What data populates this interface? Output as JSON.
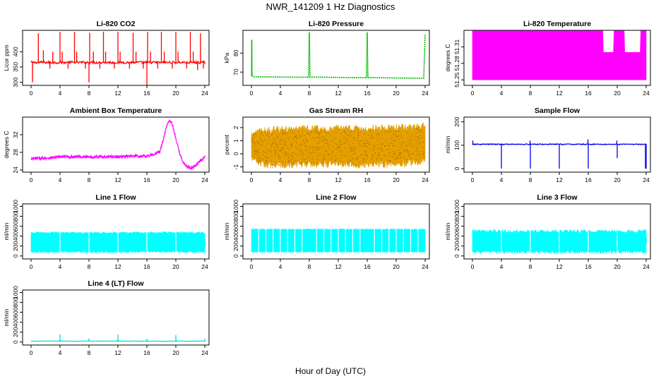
{
  "figure": {
    "title": "NWR_141209  1 Hz Diagnostics",
    "xlabel": "Hour of Day (UTC)"
  },
  "chart_data": [
    {
      "id": "co2",
      "type": "line",
      "title": "Li-820 CO2",
      "ylabel": "Licor ppm",
      "color": "#ff0000",
      "xlim": [
        0,
        24
      ],
      "ylim": [
        290,
        470
      ],
      "xticks": [
        0,
        4,
        8,
        12,
        16,
        20,
        24
      ],
      "yticks": [
        300,
        350,
        400
      ],
      "series": [
        {
          "baseline": 365,
          "noise": 4,
          "spikes": [
            [
              0.2,
              300
            ],
            [
              1.0,
              460
            ],
            [
              1.7,
              405
            ],
            [
              2.6,
              345
            ],
            [
              3.0,
              400
            ],
            [
              4.0,
              465
            ],
            [
              4.3,
              400
            ],
            [
              5.1,
              345
            ],
            [
              6.0,
              465
            ],
            [
              6.3,
              400
            ],
            [
              7.5,
              345
            ],
            [
              8.0,
              300
            ],
            [
              8.1,
              462
            ],
            [
              8.6,
              400
            ],
            [
              9.5,
              345
            ],
            [
              10.0,
              465
            ],
            [
              10.3,
              400
            ],
            [
              11.5,
              345
            ],
            [
              12.0,
              465
            ],
            [
              12.3,
              400
            ],
            [
              13.6,
              345
            ],
            [
              14.1,
              462
            ],
            [
              14.5,
              400
            ],
            [
              15.5,
              345
            ],
            [
              16.0,
              290
            ],
            [
              16.1,
              465
            ],
            [
              16.5,
              400
            ],
            [
              17.5,
              345
            ],
            [
              18.0,
              465
            ],
            [
              18.4,
              400
            ],
            [
              19.5,
              345
            ],
            [
              20.0,
              465
            ],
            [
              20.3,
              400
            ],
            [
              21.5,
              345
            ],
            [
              22.0,
              465
            ],
            [
              22.4,
              400
            ],
            [
              23.0,
              340
            ],
            [
              23.4,
              460
            ],
            [
              23.8,
              345
            ],
            [
              24.0,
              360
            ]
          ]
        }
      ]
    },
    {
      "id": "pressure",
      "type": "line",
      "title": "Li-820 Pressure",
      "ylabel": "kPa",
      "color": "#00bb00",
      "xlim": [
        0,
        24
      ],
      "ylim": [
        63,
        92
      ],
      "xticks": [
        0,
        4,
        8,
        12,
        16,
        20,
        24
      ],
      "yticks": [
        70,
        80
      ],
      "series": [
        {
          "x": [
            0,
            0.05,
            0.1,
            0.3,
            2,
            4,
            6,
            7.9,
            8.0,
            8.1,
            10,
            12,
            14,
            15.9,
            16.0,
            16.1,
            18,
            20,
            22,
            23.8,
            24.0
          ],
          "y": [
            68,
            87,
            68,
            67.5,
            67.5,
            67.4,
            67.3,
            67.3,
            91,
            67.4,
            67.3,
            67.2,
            67.1,
            67.0,
            91,
            67.1,
            67.0,
            66.9,
            66.8,
            66.7,
            90
          ]
        }
      ]
    },
    {
      "id": "licor_temp",
      "type": "area",
      "title": "Li-820 Temperature",
      "ylabel": "degrees C",
      "color": "#ff00ff",
      "xlim": [
        0,
        24
      ],
      "ylim": [
        51.24,
        51.34
      ],
      "xticks": [
        0,
        4,
        8,
        12,
        16,
        20,
        24
      ],
      "yticks": [
        51.25,
        51.28,
        51.31
      ],
      "series": [
        {
          "x": [
            0,
            18,
            18.01,
            19.5,
            19.51,
            21,
            21.01,
            23.2,
            23.21,
            24
          ],
          "low": [
            51.25,
            51.25,
            51.25,
            51.25,
            51.25,
            51.25,
            51.25,
            51.25,
            51.25,
            51.25
          ],
          "high": [
            51.34,
            51.34,
            51.3,
            51.3,
            51.34,
            51.34,
            51.3,
            51.3,
            51.34,
            51.34
          ]
        }
      ]
    },
    {
      "id": "box_temp",
      "type": "line",
      "title": "Ambient Box Temperature",
      "ylabel": "degrees C",
      "color": "#ff00ff",
      "xlim": [
        0,
        24
      ],
      "ylim": [
        23.5,
        36
      ],
      "xticks": [
        0,
        4,
        8,
        12,
        16,
        20,
        24
      ],
      "yticks": [
        24,
        28,
        32
      ],
      "series": [
        {
          "x": [
            0,
            0.5,
            1,
            2,
            3,
            4,
            6,
            8,
            10,
            12,
            14,
            16,
            17,
            17.8,
            18.3,
            18.8,
            19.1,
            19.5,
            20,
            20.5,
            21,
            21.5,
            22,
            22.4,
            23,
            23.5,
            24
          ],
          "y": [
            26.4,
            26.6,
            26.6,
            26.7,
            26.8,
            27.0,
            27.0,
            27.0,
            27.0,
            27.0,
            27.1,
            27.2,
            27.5,
            28.2,
            31.0,
            34.5,
            35.4,
            34.5,
            31.0,
            28.0,
            25.8,
            24.8,
            24.4,
            24.6,
            25.4,
            26.2,
            27.0
          ],
          "noise": 0.35
        }
      ]
    },
    {
      "id": "gas_rh",
      "type": "area",
      "title": "Gas Stream RH",
      "ylabel": "percent",
      "color": "#e3a000",
      "xlim": [
        0,
        24
      ],
      "ylim": [
        -1.4,
        2.8
      ],
      "xticks": [
        0,
        4,
        8,
        12,
        16,
        20,
        24
      ],
      "yticks": [
        -1,
        0,
        1,
        2
      ],
      "series": [
        {
          "x": [
            0,
            2,
            4,
            6,
            8,
            10,
            12,
            14,
            16,
            18,
            20,
            22,
            24
          ],
          "low": [
            -0.5,
            -0.8,
            -0.9,
            -0.8,
            -0.8,
            -0.8,
            -0.8,
            -0.9,
            -0.8,
            -0.8,
            -0.8,
            -0.7,
            -0.6
          ],
          "high": [
            1.5,
            1.8,
            1.9,
            1.9,
            1.9,
            1.9,
            1.9,
            1.9,
            1.9,
            2.0,
            2.0,
            2.0,
            2.1
          ],
          "noise": 0.3
        }
      ]
    },
    {
      "id": "sample_flow",
      "type": "line",
      "title": "Sample Flow",
      "ylabel": "ml/min",
      "color": "#0000ee",
      "xlim": [
        0,
        24
      ],
      "ylim": [
        -15,
        220
      ],
      "xticks": [
        0,
        4,
        8,
        12,
        16,
        20,
        24
      ],
      "yticks": [
        0,
        100,
        200
      ],
      "series": [
        {
          "baseline": 104,
          "noise": 2,
          "spikes": [
            [
              0.05,
              120
            ],
            [
              0.1,
              100
            ],
            [
              4.0,
              0
            ],
            [
              7.95,
              120
            ],
            [
              8.0,
              0
            ],
            [
              12.0,
              0
            ],
            [
              15.95,
              125
            ],
            [
              16.0,
              0
            ],
            [
              19.95,
              120
            ],
            [
              20.0,
              45
            ],
            [
              23.9,
              0
            ],
            [
              24.0,
              0
            ]
          ]
        }
      ]
    },
    {
      "id": "line1",
      "type": "area",
      "title": "Line 1 Flow",
      "ylabel": "ml/min",
      "color": "#00ffff",
      "xlim": [
        0,
        24
      ],
      "ylim": [
        -60,
        1050
      ],
      "xticks": [
        0,
        4,
        8,
        12,
        16,
        20,
        24
      ],
      "yticks": [
        0,
        200,
        400,
        600,
        800,
        1000
      ],
      "series": [
        {
          "x": [
            0,
            24
          ],
          "low": [
            80,
            80
          ],
          "high": [
            470,
            470
          ],
          "noise": 20,
          "gaps": [
            4,
            8,
            12,
            16,
            20
          ],
          "tail": [
            [
              23.9,
              24.1
            ],
            [
              150,
              350
            ]
          ]
        }
      ]
    },
    {
      "id": "line2",
      "type": "area",
      "title": "Line 2 Flow",
      "ylabel": "ml/min",
      "color": "#00ffff",
      "xlim": [
        0,
        24
      ],
      "ylim": [
        -60,
        1050
      ],
      "xticks": [
        0,
        4,
        8,
        12,
        16,
        20,
        24
      ],
      "yticks": [
        0,
        200,
        400,
        600,
        800,
        1000
      ],
      "series": [
        {
          "x": [
            0,
            24
          ],
          "low": [
            80,
            80
          ],
          "high": [
            540,
            540
          ],
          "noise": 6,
          "gaps": [
            1,
            2,
            3,
            4,
            5,
            6,
            7,
            9,
            10,
            11,
            12,
            13,
            14,
            15,
            17,
            18,
            19,
            20,
            21,
            22,
            23
          ]
        }
      ]
    },
    {
      "id": "line3",
      "type": "area",
      "title": "Line 3 Flow",
      "ylabel": "ml/min",
      "color": "#00ffff",
      "xlim": [
        0,
        24
      ],
      "ylim": [
        -60,
        1050
      ],
      "xticks": [
        0,
        4,
        8,
        12,
        16,
        20,
        24
      ],
      "yticks": [
        0,
        200,
        400,
        600,
        800,
        1000
      ],
      "series": [
        {
          "x": [
            0,
            24
          ],
          "low": [
            80,
            80
          ],
          "high": [
            500,
            500
          ],
          "noise": 35,
          "gaps": [
            4,
            8,
            12,
            16,
            20
          ],
          "tail": [
            [
              23.9,
              24.1
            ],
            [
              250,
              380
            ]
          ]
        }
      ]
    },
    {
      "id": "line4",
      "type": "line",
      "title": "Line 4 (LT) Flow",
      "ylabel": "ml/min",
      "color": "#00dddd",
      "xlim": [
        0,
        24
      ],
      "ylim": [
        -60,
        1050
      ],
      "xticks": [
        0,
        4,
        8,
        12,
        16,
        20,
        24
      ],
      "yticks": [
        0,
        200,
        400,
        600,
        800,
        1000
      ],
      "series": [
        {
          "baseline": 18,
          "noise": 3,
          "spikes": [
            [
              4.0,
              150
            ],
            [
              4.1,
              40
            ],
            [
              8.0,
              70
            ],
            [
              12.0,
              150
            ],
            [
              12.1,
              40
            ],
            [
              16.0,
              70
            ],
            [
              20.0,
              140
            ],
            [
              20.1,
              40
            ],
            [
              24.0,
              70
            ]
          ]
        }
      ]
    }
  ]
}
